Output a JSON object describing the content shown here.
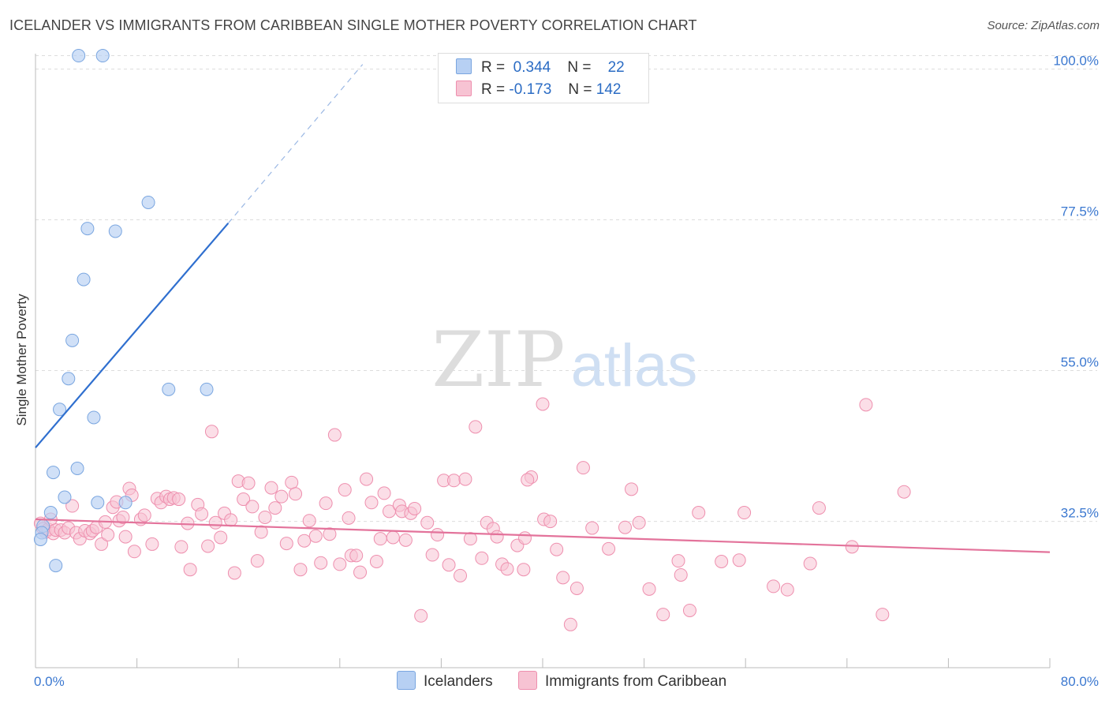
{
  "header": {
    "title": "ICELANDER VS IMMIGRANTS FROM CARIBBEAN SINGLE MOTHER POVERTY CORRELATION CHART",
    "source": "Source: ZipAtlas.com"
  },
  "legend_top": {
    "rows": [
      {
        "r_label": "R =",
        "r_value": "0.344",
        "n_label": "N =",
        "n_value": "22"
      },
      {
        "r_label": "R =",
        "r_value": "-0.173",
        "n_label": "N =",
        "n_value": "142"
      }
    ]
  },
  "legend_bottom": {
    "items": [
      {
        "label": "Icelanders"
      },
      {
        "label": "Immigrants from Caribbean"
      }
    ]
  },
  "watermark": {
    "zip": "ZIP",
    "atlas": "atlas"
  },
  "colors": {
    "blue_fill": "#b7d0f3",
    "blue_stroke": "#7aa6e0",
    "blue_line": "#2f6fcf",
    "pink_fill": "#f7c3d3",
    "pink_stroke": "#ee8fae",
    "pink_line": "#e3739b",
    "tick_label": "#3b78d0",
    "grid": "#dddddd"
  },
  "chart_data": {
    "type": "scatter",
    "title": "ICELANDER VS IMMIGRANTS FROM CARIBBEAN SINGLE MOTHER POVERTY CORRELATION CHART",
    "xlabel": "",
    "ylabel": "Single Mother Poverty",
    "xlim": [
      0,
      80
    ],
    "ylim": [
      11.6,
      102.3
    ],
    "x_tick_labels": [
      "0.0%",
      "80.0%"
    ],
    "y_ticks": [
      32.5,
      55.0,
      77.5,
      100.0
    ],
    "y_tick_labels": [
      "32.5%",
      "55.0%",
      "77.5%",
      "100.0%"
    ],
    "grid": true,
    "legend_position": "top-center",
    "series": [
      {
        "name": "Icelanders",
        "R": 0.344,
        "N": 22,
        "points": [
          [
            3.4,
            102.0
          ],
          [
            5.3,
            102.0
          ],
          [
            8.9,
            80.1
          ],
          [
            4.1,
            76.2
          ],
          [
            6.3,
            75.8
          ],
          [
            3.8,
            68.6
          ],
          [
            2.9,
            59.5
          ],
          [
            2.6,
            53.8
          ],
          [
            1.9,
            49.2
          ],
          [
            4.6,
            48.0
          ],
          [
            10.5,
            52.2
          ],
          [
            13.5,
            52.2
          ],
          [
            1.4,
            39.8
          ],
          [
            3.3,
            40.4
          ],
          [
            2.3,
            36.1
          ],
          [
            4.9,
            35.3
          ],
          [
            7.1,
            35.3
          ],
          [
            1.2,
            33.8
          ],
          [
            0.6,
            31.8
          ],
          [
            0.5,
            30.8
          ],
          [
            0.4,
            29.8
          ],
          [
            1.6,
            25.9
          ]
        ],
        "trend": {
          "x0": 0,
          "y0": 43.5,
          "x1": 15.2,
          "y1": 77.0,
          "dash_to_x": 25.8,
          "dash_to_y": 100.7
        }
      },
      {
        "name": "Immigrants from Caribbean",
        "R": -0.173,
        "N": 142,
        "points": [
          [
            0.4,
            32.2
          ],
          [
            0.6,
            31.4
          ],
          [
            0.8,
            30.9
          ],
          [
            1.0,
            31.3
          ],
          [
            1.2,
            32.8
          ],
          [
            1.4,
            30.7
          ],
          [
            1.6,
            31.2
          ],
          [
            2.0,
            31.2
          ],
          [
            2.3,
            30.8
          ],
          [
            2.6,
            31.5
          ],
          [
            2.9,
            34.8
          ],
          [
            3.2,
            30.8
          ],
          [
            3.5,
            29.9
          ],
          [
            3.9,
            31.1
          ],
          [
            4.3,
            30.7
          ],
          [
            4.5,
            31.1
          ],
          [
            4.8,
            31.6
          ],
          [
            5.2,
            29.1
          ],
          [
            5.5,
            32.4
          ],
          [
            5.7,
            30.5
          ],
          [
            6.1,
            34.6
          ],
          [
            6.4,
            35.4
          ],
          [
            6.6,
            32.6
          ],
          [
            6.9,
            33.1
          ],
          [
            7.1,
            30.2
          ],
          [
            7.4,
            37.4
          ],
          [
            7.6,
            36.4
          ],
          [
            7.8,
            28.0
          ],
          [
            8.3,
            32.8
          ],
          [
            8.6,
            33.4
          ],
          [
            9.2,
            29.1
          ],
          [
            9.6,
            35.9
          ],
          [
            9.9,
            35.3
          ],
          [
            10.3,
            36.2
          ],
          [
            10.6,
            35.8
          ],
          [
            10.9,
            36.0
          ],
          [
            11.3,
            35.8
          ],
          [
            11.5,
            28.7
          ],
          [
            12.0,
            32.2
          ],
          [
            12.2,
            25.3
          ],
          [
            12.8,
            35.0
          ],
          [
            13.1,
            33.6
          ],
          [
            13.6,
            28.8
          ],
          [
            13.9,
            45.9
          ],
          [
            14.2,
            32.3
          ],
          [
            14.6,
            30.1
          ],
          [
            14.9,
            33.7
          ],
          [
            15.4,
            32.7
          ],
          [
            15.7,
            24.8
          ],
          [
            16.0,
            38.5
          ],
          [
            16.4,
            35.8
          ],
          [
            16.8,
            38.2
          ],
          [
            17.1,
            34.7
          ],
          [
            17.5,
            26.6
          ],
          [
            17.8,
            30.9
          ],
          [
            18.1,
            33.1
          ],
          [
            18.6,
            37.5
          ],
          [
            18.9,
            34.5
          ],
          [
            19.4,
            36.2
          ],
          [
            19.8,
            29.2
          ],
          [
            20.2,
            38.3
          ],
          [
            20.5,
            36.6
          ],
          [
            20.9,
            25.3
          ],
          [
            21.2,
            29.6
          ],
          [
            21.6,
            32.6
          ],
          [
            22.1,
            30.3
          ],
          [
            22.5,
            26.3
          ],
          [
            22.9,
            35.2
          ],
          [
            23.2,
            30.6
          ],
          [
            23.6,
            45.4
          ],
          [
            24.0,
            26.1
          ],
          [
            24.4,
            37.2
          ],
          [
            24.7,
            33.0
          ],
          [
            24.9,
            27.4
          ],
          [
            25.3,
            27.4
          ],
          [
            25.6,
            24.9
          ],
          [
            26.1,
            38.8
          ],
          [
            26.5,
            35.3
          ],
          [
            26.9,
            26.5
          ],
          [
            27.2,
            29.9
          ],
          [
            27.5,
            36.7
          ],
          [
            27.9,
            34.0
          ],
          [
            28.2,
            30.1
          ],
          [
            28.7,
            34.9
          ],
          [
            28.9,
            34.0
          ],
          [
            29.2,
            29.7
          ],
          [
            29.6,
            33.7
          ],
          [
            29.9,
            34.4
          ],
          [
            30.4,
            18.4
          ],
          [
            30.9,
            32.3
          ],
          [
            31.3,
            27.5
          ],
          [
            31.7,
            30.5
          ],
          [
            32.2,
            38.6
          ],
          [
            32.6,
            26.0
          ],
          [
            33.0,
            38.6
          ],
          [
            33.5,
            24.4
          ],
          [
            33.9,
            38.8
          ],
          [
            34.3,
            29.9
          ],
          [
            34.7,
            46.6
          ],
          [
            35.2,
            27.0
          ],
          [
            35.6,
            32.3
          ],
          [
            36.1,
            31.4
          ],
          [
            36.4,
            30.2
          ],
          [
            36.8,
            26.1
          ],
          [
            37.2,
            25.4
          ],
          [
            38.0,
            28.9
          ],
          [
            38.6,
            30.0
          ],
          [
            39.1,
            39.1
          ],
          [
            38.8,
            38.7
          ],
          [
            38.5,
            25.3
          ],
          [
            40.1,
            32.8
          ],
          [
            40.0,
            50.0
          ],
          [
            40.6,
            32.5
          ],
          [
            41.1,
            28.3
          ],
          [
            41.6,
            24.1
          ],
          [
            42.2,
            17.1
          ],
          [
            42.7,
            22.5
          ],
          [
            43.2,
            40.5
          ],
          [
            43.9,
            31.5
          ],
          [
            45.2,
            28.4
          ],
          [
            46.5,
            31.6
          ],
          [
            47.0,
            37.3
          ],
          [
            47.6,
            32.3
          ],
          [
            48.4,
            22.4
          ],
          [
            49.5,
            18.6
          ],
          [
            50.7,
            26.6
          ],
          [
            50.9,
            24.5
          ],
          [
            51.6,
            19.2
          ],
          [
            52.3,
            33.8
          ],
          [
            54.1,
            26.5
          ],
          [
            55.5,
            26.7
          ],
          [
            55.9,
            33.8
          ],
          [
            58.2,
            22.8
          ],
          [
            59.3,
            22.3
          ],
          [
            61.1,
            26.2
          ],
          [
            61.8,
            34.5
          ],
          [
            64.4,
            28.7
          ],
          [
            65.5,
            49.9
          ],
          [
            68.5,
            36.9
          ],
          [
            66.8,
            18.6
          ]
        ],
        "trend": {
          "x0": 0,
          "y0": 32.8,
          "x1": 80,
          "y1": 27.9
        }
      }
    ]
  }
}
